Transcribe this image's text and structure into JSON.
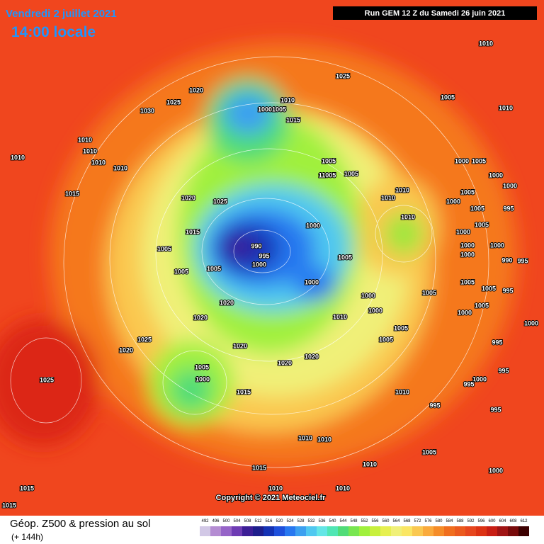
{
  "header": {
    "date": "Vendredi 2 juillet 2021",
    "time": "14:00 locale",
    "run": "Run GEM 12 Z du Samedi 26 juin 2021"
  },
  "map": {
    "pressure_labels": [
      "1010",
      "1025",
      "1020",
      "1025",
      "1030",
      "1010",
      "1000",
      "1005",
      "1015",
      "1005",
      "1010",
      "1010",
      "1010",
      "1010",
      "1010",
      "1010",
      "1005",
      "1000",
      "1005",
      "11005",
      "1005",
      "1000",
      "1010",
      "1000",
      "1015",
      "1020",
      "1025",
      "1010",
      "1005",
      "1000",
      "1005",
      "995",
      "1010",
      "1005",
      "1015",
      "1000",
      "1000",
      "990",
      "995",
      "1005",
      "1000",
      "1000",
      "1005",
      "1000",
      "1000",
      "990",
      "995",
      "1005",
      "1005",
      "1005",
      "1000",
      "1005",
      "995",
      "1000",
      "1005",
      "1020",
      "1005",
      "1000",
      "1000",
      "1010",
      "1020",
      "1000",
      "1005",
      "1025",
      "1005",
      "995",
      "1020",
      "1020",
      "1020",
      "1020",
      "1005",
      "995",
      "1000",
      "1025",
      "1000",
      "1015",
      "1010",
      "995",
      "995",
      "995",
      "1010",
      "1010",
      "1005",
      "1010",
      "1015",
      "1000",
      "1015",
      "1010",
      "1010",
      "1015"
    ],
    "copyright": "Copyright © 2021 Meteociel.fr"
  },
  "footer": {
    "title": "Géop. Z500 & pression au sol",
    "lead": "(+ 144h)",
    "scale": [
      492,
      496,
      500,
      504,
      508,
      512,
      516,
      520,
      524,
      528,
      532,
      536,
      540,
      544,
      548,
      552,
      556,
      560,
      564,
      568,
      572,
      576,
      580,
      584,
      588,
      592,
      596,
      600,
      604,
      608,
      612
    ],
    "colors": [
      "#d2c8e6",
      "#b48cd2",
      "#9664c8",
      "#6e3cb4",
      "#3c1e96",
      "#1e1e8c",
      "#1432b4",
      "#1e50dc",
      "#2878f0",
      "#3ca0f0",
      "#50c8f0",
      "#64e6e6",
      "#50e6b4",
      "#50dc78",
      "#78e650",
      "#a0f03c",
      "#c8f03c",
      "#e6f050",
      "#f0f078",
      "#fae664",
      "#fac850",
      "#faaa3c",
      "#f58c28",
      "#f06e1e",
      "#eb5a1e",
      "#e6461e",
      "#dc3214",
      "#c81e14",
      "#a01414",
      "#780a0a",
      "#3c0000"
    ]
  }
}
